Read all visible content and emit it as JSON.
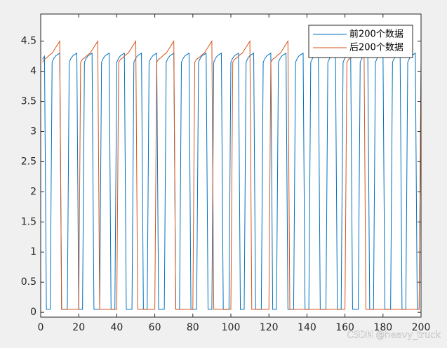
{
  "chart_data": {
    "type": "line",
    "x": [
      1,
      2,
      3,
      4,
      5,
      6,
      7,
      8,
      9,
      10,
      11,
      12,
      13,
      14,
      15,
      16,
      17,
      18,
      19,
      20,
      21,
      22,
      23,
      24,
      25,
      26,
      27,
      28,
      29,
      30,
      31,
      32,
      33,
      34,
      35,
      36,
      37,
      38,
      39,
      40,
      41,
      42,
      43,
      44,
      45,
      46,
      47,
      48,
      49,
      50,
      51,
      52,
      53,
      54,
      55,
      56,
      57,
      58,
      59,
      60,
      61,
      62,
      63,
      64,
      65,
      66,
      67,
      68,
      69,
      70,
      71,
      72,
      73,
      74,
      75,
      76,
      77,
      78,
      79,
      80,
      81,
      82,
      83,
      84,
      85,
      86,
      87,
      88,
      89,
      90,
      91,
      92,
      93,
      94,
      95,
      96,
      97,
      98,
      99,
      100,
      101,
      102,
      103,
      104,
      105,
      106,
      107,
      108,
      109,
      110,
      111,
      112,
      113,
      114,
      115,
      116,
      117,
      118,
      119,
      120,
      121,
      122,
      123,
      124,
      125,
      126,
      127,
      128,
      129,
      130,
      131,
      132,
      133,
      134,
      135,
      136,
      137,
      138,
      139,
      140,
      141,
      142,
      143,
      144,
      145,
      146,
      147,
      148,
      149,
      150,
      151,
      152,
      153,
      154,
      155,
      156,
      157,
      158,
      159,
      160,
      161,
      162,
      163,
      164,
      165,
      166,
      167,
      168,
      169,
      170,
      171,
      172,
      173,
      174,
      175,
      176,
      177,
      178,
      179,
      180,
      181,
      182,
      183,
      184,
      185,
      186,
      187,
      188,
      189,
      190,
      191,
      192,
      193,
      194,
      195,
      196,
      197,
      198,
      199,
      200
    ],
    "series": [
      {
        "name": "前200个数据",
        "color": "#0072bd",
        "values": [
          4.2,
          4.25,
          0.05,
          0.05,
          0.05,
          4.15,
          4.22,
          4.26,
          4.28,
          4.3,
          0.05,
          0.05,
          0.05,
          0.05,
          4.15,
          4.22,
          4.26,
          4.28,
          4.3,
          0.05,
          0.05,
          0.05,
          4.15,
          4.22,
          4.26,
          4.28,
          4.3,
          0.05,
          0.05,
          0.05,
          0.05,
          4.15,
          4.22,
          4.26,
          4.28,
          4.3,
          0.05,
          0.05,
          0.05,
          4.15,
          4.22,
          4.26,
          4.28,
          4.3,
          0.05,
          0.05,
          0.05,
          0.05,
          4.15,
          4.22,
          4.26,
          4.28,
          4.3,
          0.05,
          0.05,
          0.05,
          4.15,
          4.22,
          4.26,
          4.28,
          4.3,
          0.05,
          0.05,
          0.05,
          0.05,
          4.15,
          4.22,
          4.26,
          4.28,
          4.3,
          0.05,
          0.05,
          0.05,
          4.15,
          4.22,
          4.26,
          4.28,
          4.3,
          0.05,
          0.05,
          0.05,
          0.05,
          4.15,
          4.22,
          4.26,
          4.28,
          4.3,
          0.05,
          0.05,
          0.05,
          4.15,
          4.22,
          4.26,
          4.28,
          4.3,
          0.05,
          0.05,
          0.05,
          0.05,
          4.15,
          4.22,
          4.26,
          4.28,
          4.3,
          0.05,
          0.05,
          0.05,
          4.15,
          4.22,
          4.26,
          4.28,
          4.3,
          0.05,
          0.05,
          0.05,
          0.05,
          4.15,
          4.22,
          4.26,
          4.28,
          4.3,
          0.05,
          0.05,
          0.05,
          4.15,
          4.22,
          4.26,
          4.28,
          4.3,
          0.05,
          0.05,
          0.05,
          0.05,
          4.15,
          4.22,
          4.26,
          4.28,
          4.3,
          0.05,
          0.05,
          0.05,
          4.15,
          4.22,
          4.26,
          4.28,
          4.3,
          0.05,
          0.05,
          0.05,
          0.05,
          4.15,
          4.22,
          4.26,
          4.28,
          4.3,
          0.05,
          0.05,
          0.05,
          4.15,
          4.22,
          4.26,
          4.28,
          4.3,
          0.05,
          0.05,
          0.05,
          0.05,
          4.15,
          4.22,
          4.26,
          4.28,
          4.3,
          0.05,
          0.05,
          0.05,
          4.15,
          4.22,
          4.26,
          4.28,
          4.3,
          0.05,
          0.05,
          0.05,
          0.05,
          4.15,
          4.22,
          4.26,
          4.28,
          4.3,
          0.05,
          0.05,
          0.05,
          4.15,
          4.22,
          4.26,
          4.28,
          4.3,
          0.05,
          0.05,
          4.2
        ]
      },
      {
        "name": "后200个数据",
        "color": "#d95319",
        "values": [
          4.15,
          4.2,
          4.22,
          4.25,
          4.28,
          4.3,
          4.35,
          4.4,
          4.45,
          4.5,
          0.05,
          0.05,
          0.05,
          0.05,
          0.05,
          0.05,
          0.05,
          0.05,
          0.05,
          0.05,
          4.15,
          4.2,
          4.22,
          4.25,
          4.28,
          4.3,
          4.35,
          4.4,
          4.45,
          4.5,
          0.05,
          0.05,
          0.05,
          0.05,
          0.05,
          0.05,
          0.05,
          0.05,
          0.05,
          0.05,
          4.15,
          4.2,
          4.22,
          4.25,
          4.28,
          4.3,
          4.35,
          4.4,
          4.45,
          4.5,
          0.05,
          0.05,
          0.05,
          0.05,
          0.05,
          0.05,
          0.05,
          0.05,
          0.05,
          0.05,
          4.15,
          4.2,
          4.22,
          4.25,
          4.28,
          4.3,
          4.35,
          4.4,
          4.45,
          4.5,
          0.05,
          0.05,
          0.05,
          0.05,
          0.05,
          0.05,
          0.05,
          0.05,
          0.05,
          0.05,
          4.15,
          4.2,
          4.22,
          4.25,
          4.28,
          4.3,
          4.35,
          4.4,
          4.45,
          4.5,
          0.05,
          0.05,
          0.05,
          0.05,
          0.05,
          0.05,
          0.05,
          0.05,
          0.05,
          0.05,
          4.15,
          4.2,
          4.22,
          4.25,
          4.28,
          4.3,
          4.35,
          4.4,
          4.45,
          4.5,
          0.05,
          0.05,
          0.05,
          0.05,
          0.05,
          0.05,
          0.05,
          0.05,
          0.05,
          0.05,
          4.15,
          4.2,
          4.22,
          4.25,
          4.28,
          4.3,
          4.35,
          4.4,
          4.45,
          4.5,
          0.05,
          0.05,
          0.05,
          0.05,
          0.05,
          0.05,
          0.05,
          0.05,
          0.05,
          0.05,
          0.05,
          0.05,
          0.05,
          0.05,
          0.05,
          0.05,
          0.05,
          0.05,
          0.05,
          0.05,
          0.05,
          0.05,
          0.05,
          0.05,
          0.05,
          0.05,
          0.05,
          0.05,
          0.05,
          0.05,
          4.15,
          4.2,
          4.22,
          4.25,
          4.28,
          4.3,
          4.35,
          4.4,
          4.45,
          4.5,
          0.05,
          0.05,
          0.05,
          0.05,
          0.05,
          0.05,
          0.05,
          0.05,
          0.05,
          0.05,
          0.05,
          0.05,
          0.05,
          0.05,
          0.05,
          0.05,
          0.05,
          0.05,
          0.05,
          0.05,
          0.05,
          0.05,
          0.05,
          0.05,
          0.05,
          0.05,
          0.05,
          0.05,
          0.05,
          4.0
        ]
      }
    ],
    "xlim": [
      0,
      200
    ],
    "xticks": [
      0,
      20,
      40,
      60,
      80,
      100,
      120,
      140,
      160,
      180,
      200
    ],
    "ylim": [
      -0.08,
      4.95
    ],
    "yticks": [
      0,
      0.5,
      1,
      1.5,
      2,
      2.5,
      3,
      3.5,
      4,
      4.5
    ],
    "legend": "top-right",
    "watermark": "CSDN @heavy_truck"
  }
}
